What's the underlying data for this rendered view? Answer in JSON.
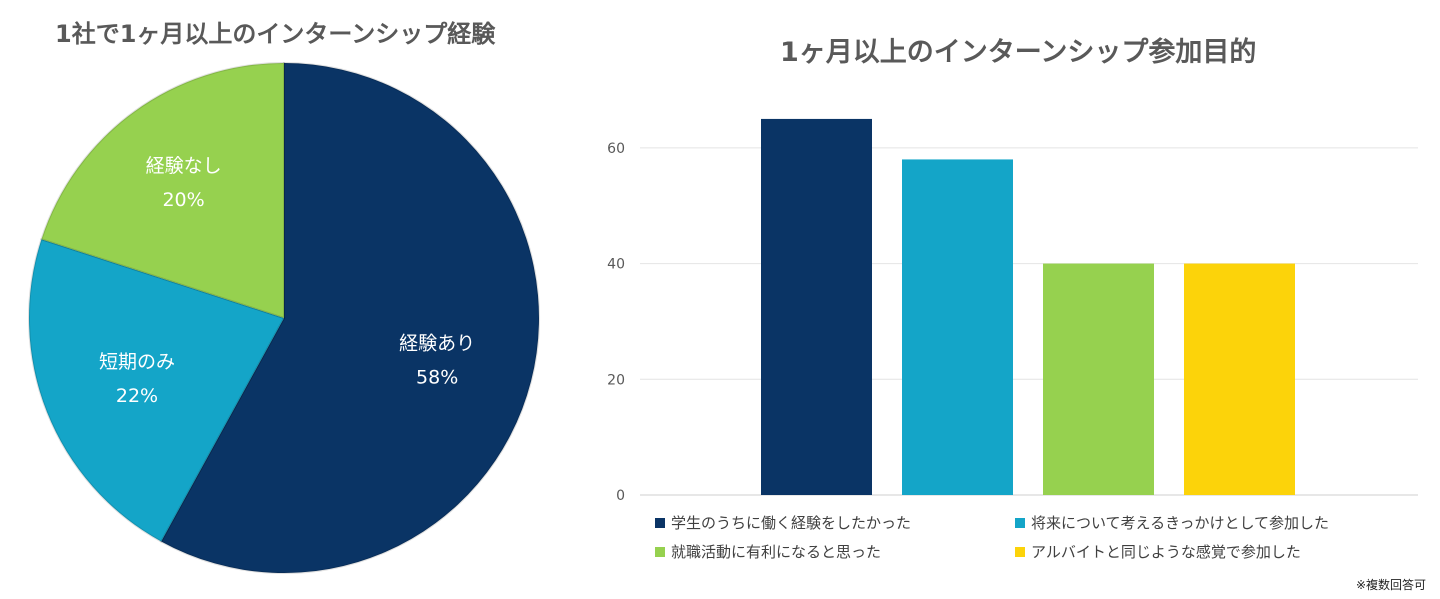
{
  "pie_chart": {
    "title": "1社で1ヶ月以上のインターンシップ経験",
    "chart_data": {
      "type": "pie",
      "title": "1社で1ヶ月以上のインターンシップ経験",
      "slices": [
        {
          "label": "経験あり",
          "value": 58,
          "value_label": "58%",
          "color": "#0A3465"
        },
        {
          "label": "短期のみ",
          "value": 22,
          "value_label": "22%",
          "color": "#14A5C8"
        },
        {
          "label": "経験なし",
          "value": 20,
          "value_label": "20%",
          "color": "#96D14F"
        }
      ]
    }
  },
  "bar_chart": {
    "title": "1ヶ月以上のインターンシップ参加目的",
    "footnote": "※複数回答可",
    "chart_data": {
      "type": "bar",
      "title": "1ヶ月以上のインターンシップ参加目的",
      "xlabel": "",
      "ylabel": "",
      "ylim": [
        0,
        70
      ],
      "yticks": [
        0,
        20,
        40,
        60
      ],
      "grid": true,
      "legend_position": "bottom",
      "series": [
        {
          "name": "学生のうちに働く経験をしたかった",
          "value": 65,
          "color": "#0A3465"
        },
        {
          "name": "将来について考えるきっかけとして参加した",
          "value": 58,
          "color": "#14A5C8"
        },
        {
          "name": "就職活動に有利になると思った",
          "value": 40,
          "color": "#96D14F"
        },
        {
          "name": "アルバイトと同じような感覚で参加した",
          "value": 40,
          "color": "#FCD30A"
        }
      ]
    }
  }
}
